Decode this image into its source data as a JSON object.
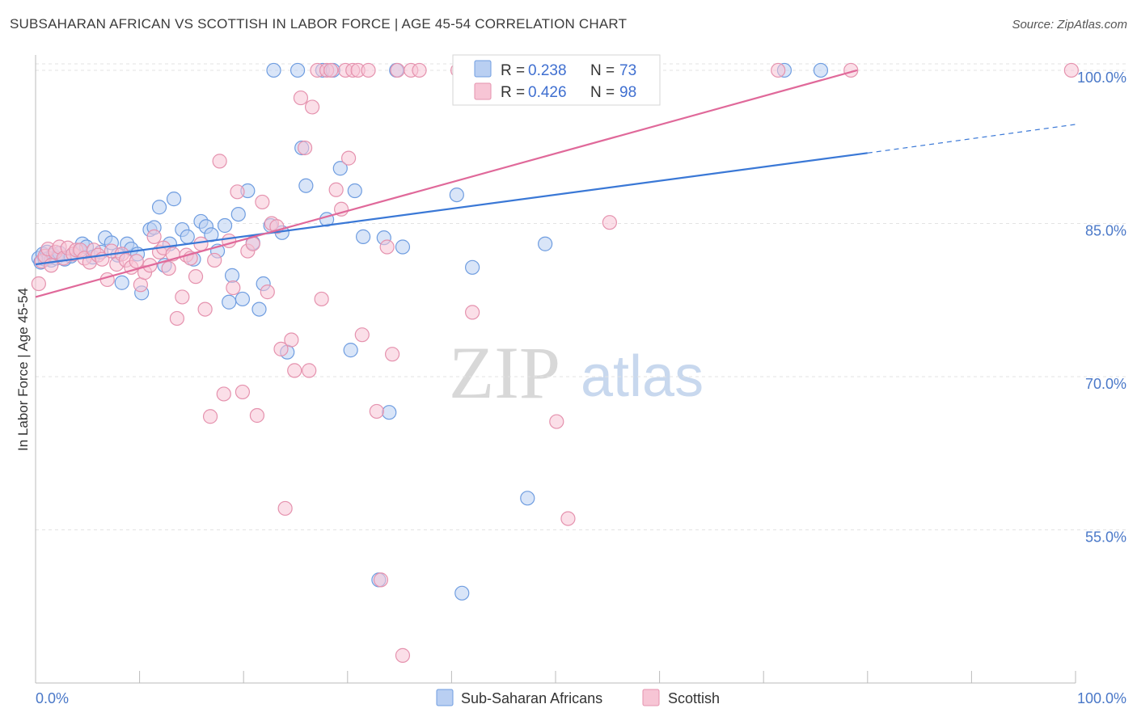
{
  "header": {
    "title": "SUBSAHARAN AFRICAN VS SCOTTISH IN LABOR FORCE | AGE 45-54 CORRELATION CHART",
    "source": "Source: ZipAtlas.com"
  },
  "watermark": {
    "zip": "ZIP",
    "atlas": "atlas"
  },
  "legend": {
    "r_label": "R =",
    "n_label": "N =",
    "rows": [
      {
        "r": "0.238",
        "n": "73",
        "color": "#6f9de0",
        "fill": "#b9cff2"
      },
      {
        "r": "0.426",
        "n": "98",
        "color": "#e592ae",
        "fill": "#f7c5d5"
      }
    ]
  },
  "bottom_legend": [
    {
      "label": "Sub-Saharan Africans",
      "fill": "#b9cff2",
      "color": "#6f9de0"
    },
    {
      "label": "Scottish",
      "fill": "#f7c5d5",
      "color": "#e592ae"
    }
  ],
  "colors": {
    "blue_line": "#3a78d6",
    "pink_line": "#e0699a",
    "grid": "#e3e3e3",
    "axis_label": "#4a78c8"
  },
  "chart_data": {
    "type": "scatter",
    "title": "SUBSAHARAN AFRICAN VS SCOTTISH IN LABOR FORCE | AGE 45-54 CORRELATION CHART",
    "xlabel": "",
    "ylabel": "In Labor Force | Age 45-54",
    "xlim": [
      0,
      100
    ],
    "ylim": [
      40,
      101.5
    ],
    "x_tick_labels": [
      "0.0%",
      "100.0%"
    ],
    "y_ticks": [
      55,
      70,
      85,
      100
    ],
    "y_tick_labels": [
      "55.0%",
      "70.0%",
      "85.0%",
      "100.0%"
    ],
    "grid": true,
    "legend_placement": "top-center",
    "series": [
      {
        "name": "Sub-Saharan Africans",
        "r": 0.238,
        "n": 73,
        "trend": {
          "x": [
            0,
            80
          ],
          "y": [
            81.0,
            91.9
          ]
        },
        "trend_dashed": {
          "x": [
            80,
            100
          ],
          "y": [
            91.9,
            94.7
          ]
        },
        "points": [
          [
            0.3,
            81.6
          ],
          [
            0.5,
            81.2
          ],
          [
            0.7,
            82.0
          ],
          [
            0.9,
            81.5
          ],
          [
            1.1,
            82.2
          ],
          [
            1.3,
            81.6
          ],
          [
            1.5,
            81.4
          ],
          [
            1.7,
            81.9
          ],
          [
            2.0,
            81.6
          ],
          [
            2.3,
            82.1
          ],
          [
            2.8,
            81.5
          ],
          [
            3.4,
            81.8
          ],
          [
            4.2,
            82.3
          ],
          [
            4.5,
            83.0
          ],
          [
            4.9,
            82.7
          ],
          [
            5.5,
            81.7
          ],
          [
            6.3,
            82.2
          ],
          [
            6.7,
            83.6
          ],
          [
            7.3,
            83.1
          ],
          [
            7.9,
            81.9
          ],
          [
            8.3,
            79.2
          ],
          [
            8.8,
            83.0
          ],
          [
            9.2,
            82.5
          ],
          [
            9.8,
            82.0
          ],
          [
            10.2,
            78.2
          ],
          [
            11.0,
            84.4
          ],
          [
            11.4,
            84.6
          ],
          [
            11.9,
            86.6
          ],
          [
            12.4,
            80.9
          ],
          [
            12.9,
            83.0
          ],
          [
            13.3,
            87.4
          ],
          [
            14.1,
            84.4
          ],
          [
            14.6,
            83.7
          ],
          [
            15.2,
            81.5
          ],
          [
            15.9,
            85.2
          ],
          [
            16.4,
            84.7
          ],
          [
            16.9,
            83.9
          ],
          [
            17.5,
            82.3
          ],
          [
            18.2,
            84.8
          ],
          [
            18.6,
            77.3
          ],
          [
            18.9,
            79.9
          ],
          [
            19.5,
            85.9
          ],
          [
            19.9,
            77.6
          ],
          [
            20.4,
            88.2
          ],
          [
            20.9,
            83.1
          ],
          [
            21.5,
            76.6
          ],
          [
            21.9,
            79.1
          ],
          [
            22.6,
            84.8
          ],
          [
            22.9,
            100
          ],
          [
            23.7,
            84.1
          ],
          [
            24.2,
            72.4
          ],
          [
            25.2,
            100
          ],
          [
            25.6,
            92.4
          ],
          [
            26.0,
            88.7
          ],
          [
            27.6,
            100
          ],
          [
            28.0,
            85.4
          ],
          [
            28.6,
            100
          ],
          [
            29.3,
            90.4
          ],
          [
            30.3,
            72.6
          ],
          [
            30.7,
            88.2
          ],
          [
            31.5,
            83.7
          ],
          [
            33.0,
            50.1
          ],
          [
            33.5,
            83.6
          ],
          [
            34.0,
            66.5
          ],
          [
            34.7,
            100
          ],
          [
            35.3,
            82.7
          ],
          [
            40.5,
            87.8
          ],
          [
            41.0,
            48.8
          ],
          [
            42.0,
            80.7
          ],
          [
            47.3,
            58.1
          ],
          [
            49.0,
            83.0
          ],
          [
            72.0,
            100
          ],
          [
            75.5,
            100
          ]
        ]
      },
      {
        "name": "Scottish",
        "r": 0.426,
        "n": 98,
        "trend": {
          "x": [
            0,
            79
          ],
          "y": [
            77.8,
            100
          ]
        },
        "points": [
          [
            0.3,
            79.1
          ],
          [
            0.6,
            81.3
          ],
          [
            0.9,
            81.8
          ],
          [
            1.2,
            82.5
          ],
          [
            1.5,
            80.9
          ],
          [
            1.9,
            82.2
          ],
          [
            2.3,
            82.7
          ],
          [
            2.7,
            81.6
          ],
          [
            3.1,
            82.6
          ],
          [
            3.6,
            82.0
          ],
          [
            3.9,
            82.4
          ],
          [
            4.3,
            82.4
          ],
          [
            4.7,
            81.6
          ],
          [
            5.2,
            81.2
          ],
          [
            5.6,
            82.4
          ],
          [
            6.0,
            81.9
          ],
          [
            6.4,
            81.5
          ],
          [
            6.9,
            79.5
          ],
          [
            7.3,
            82.3
          ],
          [
            7.8,
            81.0
          ],
          [
            8.3,
            82.0
          ],
          [
            8.7,
            81.4
          ],
          [
            9.2,
            80.7
          ],
          [
            9.7,
            81.3
          ],
          [
            10.1,
            79.0
          ],
          [
            10.5,
            80.2
          ],
          [
            11.0,
            80.9
          ],
          [
            11.4,
            83.7
          ],
          [
            11.9,
            82.2
          ],
          [
            12.3,
            82.6
          ],
          [
            12.8,
            80.6
          ],
          [
            13.2,
            82.0
          ],
          [
            13.6,
            75.7
          ],
          [
            14.1,
            77.8
          ],
          [
            14.5,
            81.9
          ],
          [
            14.9,
            81.6
          ],
          [
            15.4,
            79.8
          ],
          [
            15.9,
            83.0
          ],
          [
            16.3,
            76.6
          ],
          [
            16.8,
            66.1
          ],
          [
            17.2,
            81.4
          ],
          [
            17.7,
            91.1
          ],
          [
            18.1,
            68.3
          ],
          [
            18.6,
            83.3
          ],
          [
            19.0,
            78.7
          ],
          [
            19.4,
            88.1
          ],
          [
            19.9,
            68.5
          ],
          [
            20.4,
            82.3
          ],
          [
            20.9,
            83.0
          ],
          [
            21.3,
            66.2
          ],
          [
            21.8,
            87.1
          ],
          [
            22.3,
            78.3
          ],
          [
            22.7,
            85.0
          ],
          [
            23.2,
            84.7
          ],
          [
            23.6,
            72.7
          ],
          [
            24.0,
            57.1
          ],
          [
            24.6,
            73.6
          ],
          [
            24.9,
            70.6
          ],
          [
            25.5,
            97.3
          ],
          [
            25.9,
            92.4
          ],
          [
            26.3,
            70.6
          ],
          [
            26.6,
            96.4
          ],
          [
            27.1,
            100
          ],
          [
            27.5,
            77.6
          ],
          [
            28.0,
            100
          ],
          [
            28.4,
            100
          ],
          [
            28.9,
            88.3
          ],
          [
            29.4,
            86.4
          ],
          [
            29.8,
            100
          ],
          [
            30.1,
            91.4
          ],
          [
            30.5,
            100
          ],
          [
            31.0,
            100
          ],
          [
            31.4,
            74.1
          ],
          [
            32.0,
            100
          ],
          [
            32.8,
            66.6
          ],
          [
            33.2,
            50.1
          ],
          [
            33.8,
            82.7
          ],
          [
            34.3,
            72.2
          ],
          [
            34.8,
            100
          ],
          [
            35.3,
            42.7
          ],
          [
            36.1,
            100
          ],
          [
            36.9,
            100
          ],
          [
            40.6,
            100
          ],
          [
            41.3,
            100
          ],
          [
            42.0,
            76.3
          ],
          [
            42.8,
            100
          ],
          [
            47.0,
            100
          ],
          [
            49.3,
            100
          ],
          [
            50.1,
            65.6
          ],
          [
            51.2,
            56.1
          ],
          [
            52.4,
            100
          ],
          [
            55.2,
            85.1
          ],
          [
            57.5,
            100
          ],
          [
            71.4,
            100
          ],
          [
            78.4,
            100
          ],
          [
            99.6,
            100
          ]
        ]
      }
    ]
  }
}
